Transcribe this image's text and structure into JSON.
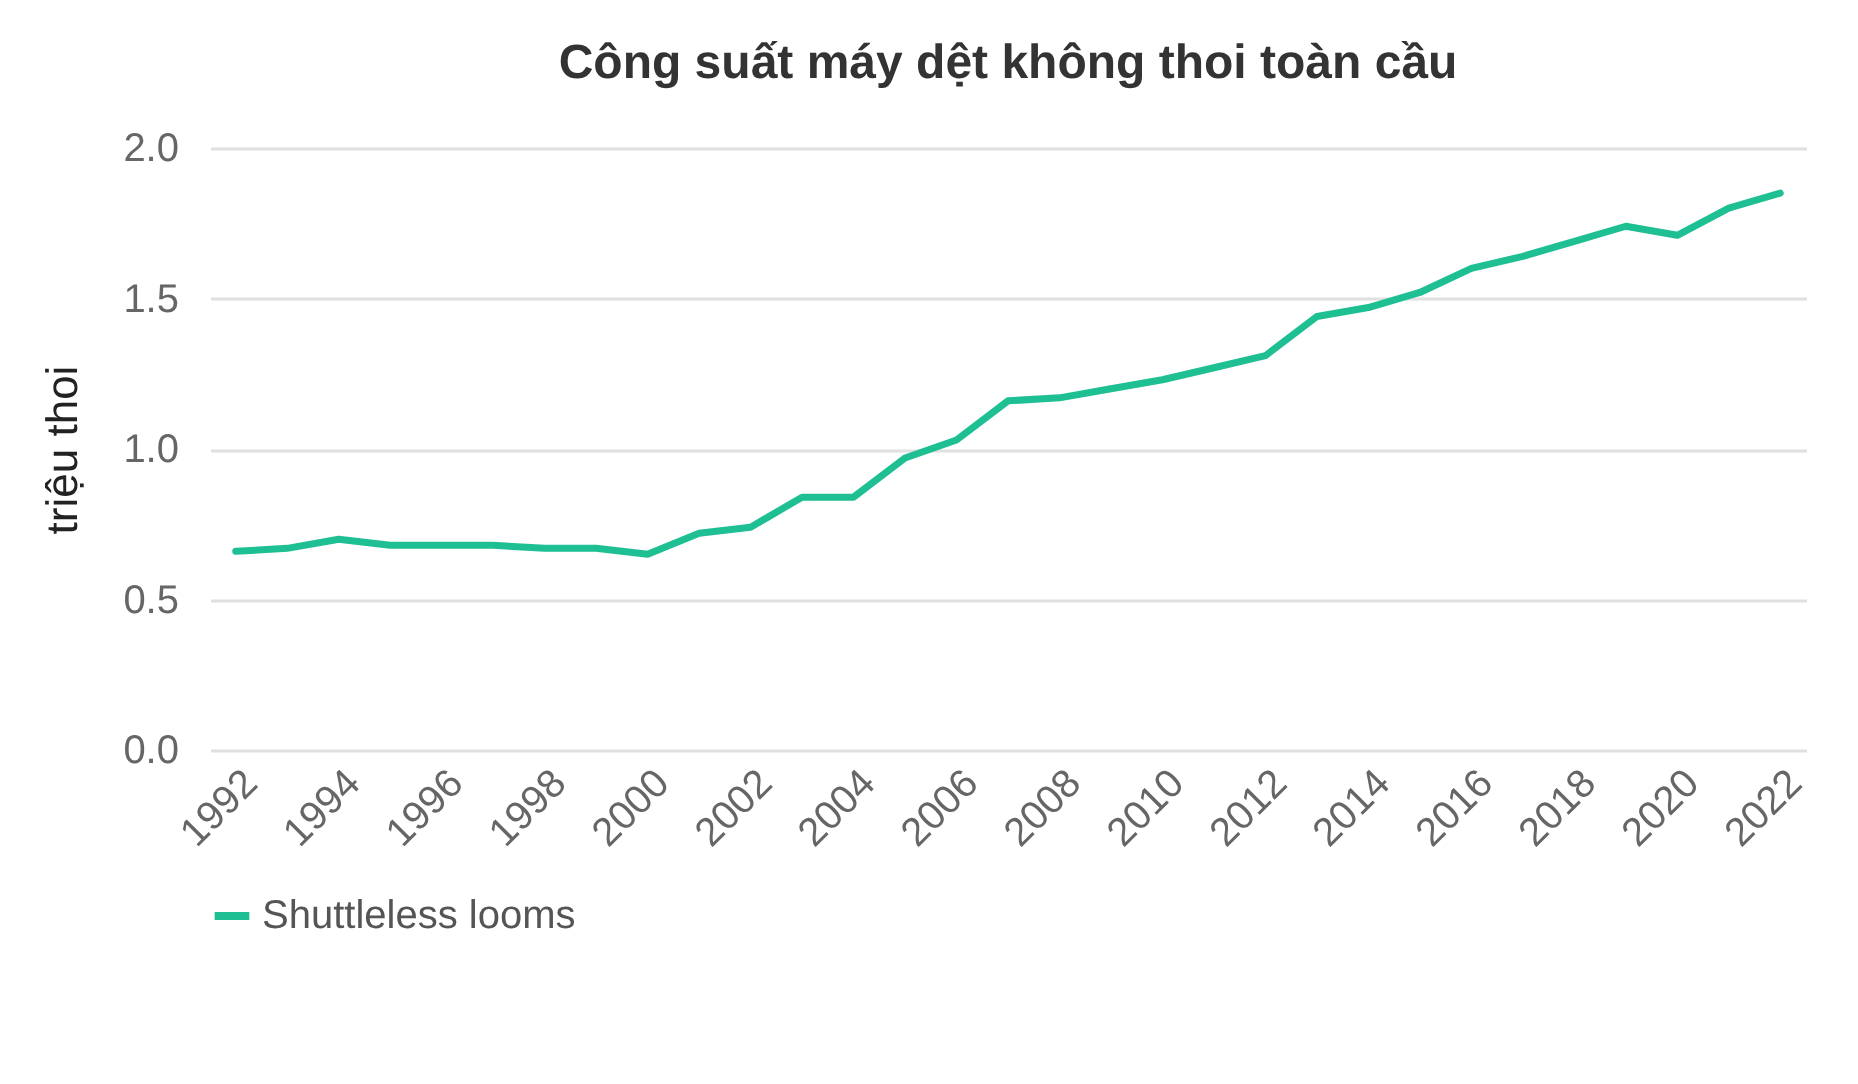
{
  "chart_data": {
    "type": "line",
    "title": "Công suất máy dệt không thoi toàn cầu",
    "ylabel": "triệu thoi",
    "categories": [
      "1992",
      null,
      "1994",
      null,
      "1996",
      null,
      "1998",
      null,
      "2000",
      null,
      "2002",
      null,
      "2004",
      null,
      "2006",
      null,
      "2008",
      null,
      "2010",
      null,
      "2012",
      null,
      "2014",
      null,
      "2016",
      null,
      "2018",
      null,
      "2020",
      null,
      "2022"
    ],
    "series": [
      {
        "name": "Shuttleless looms",
        "color": "#1fbf94",
        "values": [
          0.66,
          0.67,
          0.7,
          0.68,
          0.68,
          0.68,
          0.67,
          0.67,
          0.65,
          0.72,
          0.74,
          0.84,
          0.84,
          0.97,
          1.03,
          1.16,
          1.17,
          1.2,
          1.23,
          1.27,
          1.31,
          1.44,
          1.47,
          1.52,
          1.6,
          1.64,
          1.69,
          1.74,
          1.71,
          1.8,
          1.85
        ]
      }
    ],
    "ylim": [
      0,
      2
    ],
    "yticks": [
      {
        "value": 0,
        "label": "0.0"
      },
      {
        "value": 0.5,
        "label": "0.5"
      },
      {
        "value": 1,
        "label": "1.0"
      },
      {
        "value": 1.5,
        "label": "1.5"
      },
      {
        "value": 2,
        "label": "2.0"
      }
    ],
    "grid": "y",
    "legend": "bottom"
  }
}
